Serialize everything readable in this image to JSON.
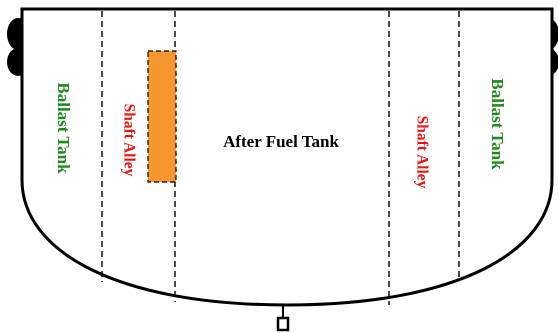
{
  "diagram": {
    "compartments": {
      "ballast_tank_left": "Ballast Tank",
      "shaft_alley_left": "Shaft Alley",
      "after_fuel_tank": "After Fuel Tank",
      "shaft_alley_right": "Shaft Alley",
      "ballast_tank_right": "Ballast Tank"
    },
    "colors": {
      "ballast_tank": "#1e8a1e",
      "shaft_alley": "#ee1111",
      "after_fuel_tank": "#000000",
      "highlight_box": "#f7962f",
      "hull_outline": "#000000"
    }
  }
}
